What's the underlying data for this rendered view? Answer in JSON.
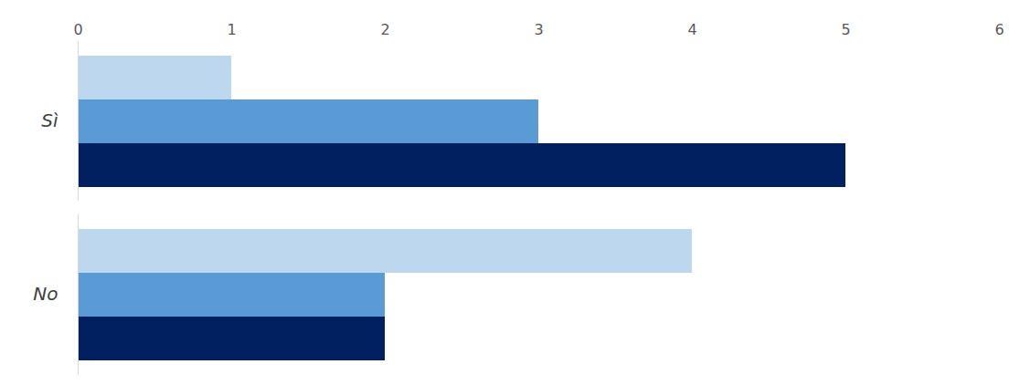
{
  "chart_data": {
    "type": "bar",
    "orientation": "horizontal",
    "categories": [
      "Sì",
      "No"
    ],
    "series": [
      {
        "color": "#BDD7EE",
        "values": [
          1,
          4
        ]
      },
      {
        "color": "#5B9BD5",
        "values": [
          3,
          2
        ]
      },
      {
        "color": "#002060",
        "values": [
          5,
          2
        ]
      }
    ],
    "xlim": [
      0,
      6
    ],
    "xticks": [
      0,
      1,
      2,
      3,
      4,
      5,
      6
    ],
    "grid": false
  }
}
